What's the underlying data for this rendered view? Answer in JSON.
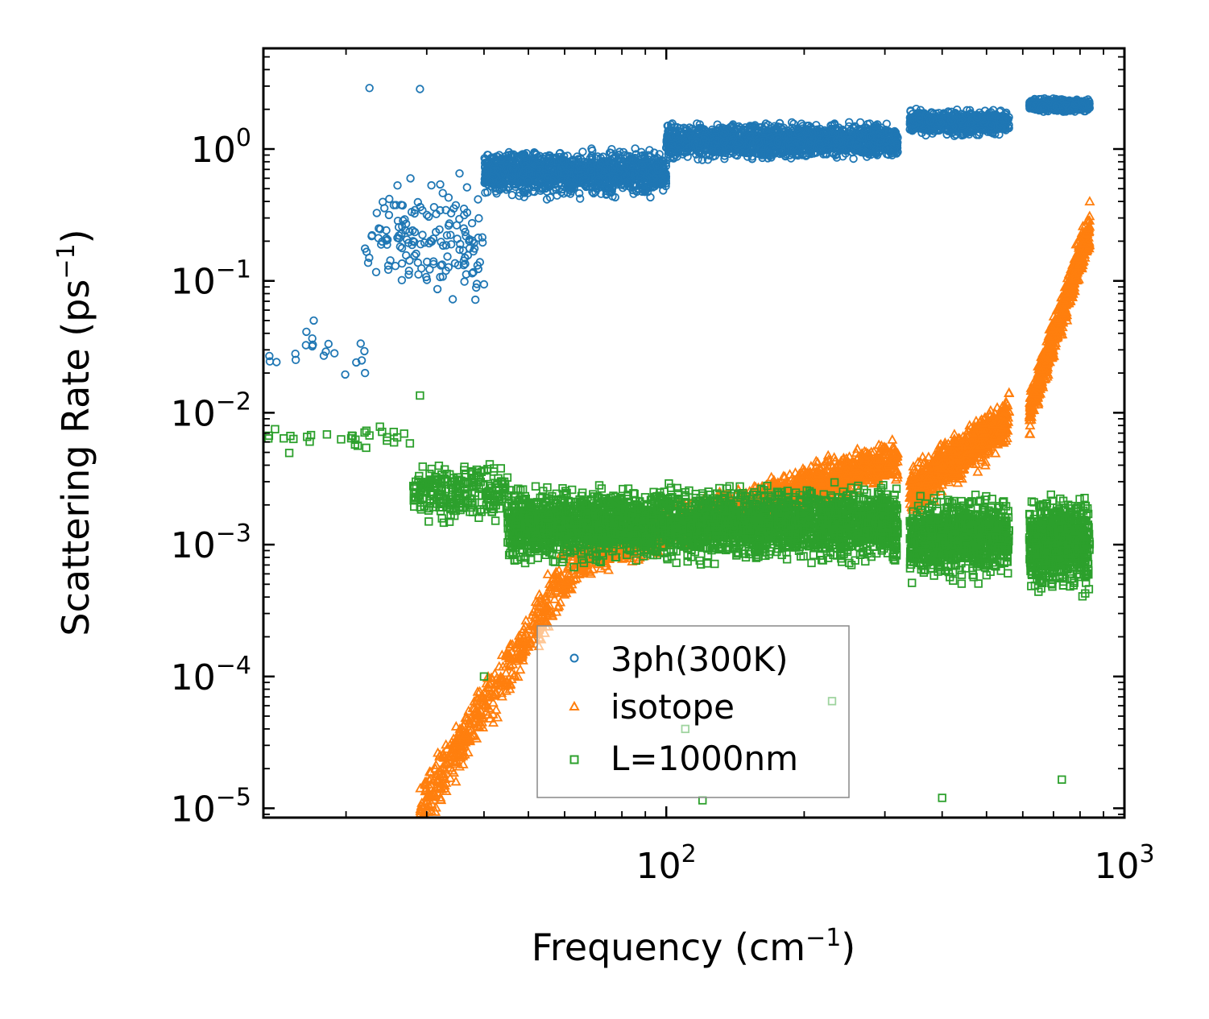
{
  "chart_data": {
    "type": "scatter",
    "title": "",
    "xlabel": "Frequency (cm",
    "xlabel_sup": "−1",
    "xlabel_end": ")",
    "ylabel": "Scattering Rate (ps",
    "ylabel_sup": "−1",
    "ylabel_end": ")",
    "xscale": "log",
    "yscale": "log",
    "xlim": [
      13.2,
      1000
    ],
    "ylim": [
      8.5e-06,
      5.8
    ],
    "x_ticks": [
      {
        "value": 100,
        "base": "10",
        "exp": "2"
      },
      {
        "value": 1000,
        "base": "10",
        "exp": "3"
      }
    ],
    "y_ticks": [
      {
        "value": 1,
        "base": "10",
        "exp": "0"
      },
      {
        "value": 0.1,
        "base": "10",
        "exp": "−1"
      },
      {
        "value": 0.01,
        "base": "10",
        "exp": "−2"
      },
      {
        "value": 0.001,
        "base": "10",
        "exp": "−3"
      },
      {
        "value": 0.0001,
        "base": "10",
        "exp": "−4"
      },
      {
        "value": 1e-05,
        "base": "10",
        "exp": "−5"
      }
    ],
    "legend_position": "lower-center",
    "series": [
      {
        "name": "3ph(300K)",
        "marker": "circle",
        "color": "#1f77b4",
        "bands": [
          {
            "x_range": [
              13.5,
              22
            ],
            "log10_y_center": -1.55,
            "log10_y_spread": 0.3,
            "count": 18
          },
          {
            "x_range": [
              22,
              40
            ],
            "log10_y_center": -0.7,
            "log10_y_spread": 0.6,
            "count": 160
          },
          {
            "x_range": [
              40,
              100
            ],
            "log10_y_center": -0.18,
            "log10_y_spread": 0.22,
            "count": 1300
          },
          {
            "x_range": [
              100,
              320
            ],
            "log10_y_center": 0.06,
            "log10_y_spread": 0.16,
            "count": 1700
          },
          {
            "x_range": [
              340,
              560
            ],
            "log10_y_center": 0.2,
            "log10_y_spread": 0.12,
            "count": 700
          },
          {
            "x_range": [
              620,
              840
            ],
            "log10_y_center": 0.33,
            "log10_y_spread": 0.06,
            "count": 500
          }
        ],
        "points": [
          [
            22.5,
            2.9
          ],
          [
            29,
            2.85
          ],
          [
            15.5,
            0.028
          ],
          [
            22,
            0.02
          ],
          [
            17,
            0.05
          ]
        ]
      },
      {
        "name": "isotope",
        "marker": "triangle",
        "color": "#ff7f0e",
        "bands": [
          {
            "x_range": [
              29,
              64
            ],
            "log10_y_start": -5.0,
            "log10_y_end": -3.1,
            "log10_y_spread": 0.28,
            "count": 500
          },
          {
            "x_range": [
              64,
              320
            ],
            "log10_y_start": -3.1,
            "log10_y_end": -2.35,
            "log10_y_spread": 0.2,
            "count": 1800
          },
          {
            "x_range": [
              340,
              560
            ],
            "log10_y_start": -2.6,
            "log10_y_end": -2.05,
            "log10_y_spread": 0.24,
            "count": 800
          },
          {
            "x_range": [
              620,
              840
            ],
            "log10_y_start": -2.0,
            "log10_y_end": -0.6,
            "log10_y_spread": 0.2,
            "count": 700
          }
        ],
        "points": [
          [
            840,
            0.4
          ],
          [
            835,
            0.25
          ],
          [
            820,
            0.15
          ]
        ]
      },
      {
        "name": "L=1000nm",
        "marker": "square",
        "color": "#2ca02c",
        "bands": [
          {
            "x_range": [
              13.5,
              28
            ],
            "log10_y_center": -2.2,
            "log10_y_spread": 0.12,
            "count": 30
          },
          {
            "x_range": [
              28,
              45
            ],
            "log10_y_center": -2.6,
            "log10_y_spread": 0.3,
            "count": 250
          },
          {
            "x_range": [
              45,
              320
            ],
            "log10_y_center": -2.85,
            "log10_y_spread": 0.35,
            "count": 3200
          },
          {
            "x_range": [
              340,
              560
            ],
            "log10_y_center": -2.95,
            "log10_y_spread": 0.38,
            "count": 900
          },
          {
            "x_range": [
              620,
              840
            ],
            "log10_y_center": -3.0,
            "log10_y_spread": 0.42,
            "count": 800
          }
        ],
        "points": [
          [
            29,
            0.0135
          ],
          [
            14,
            0.0075
          ],
          [
            40,
            0.0001
          ],
          [
            120,
            1.15e-05
          ],
          [
            400,
            1.2e-05
          ],
          [
            730,
            1.65e-05
          ],
          [
            230,
            6.5e-05
          ],
          [
            110,
            4e-05
          ]
        ]
      }
    ]
  }
}
